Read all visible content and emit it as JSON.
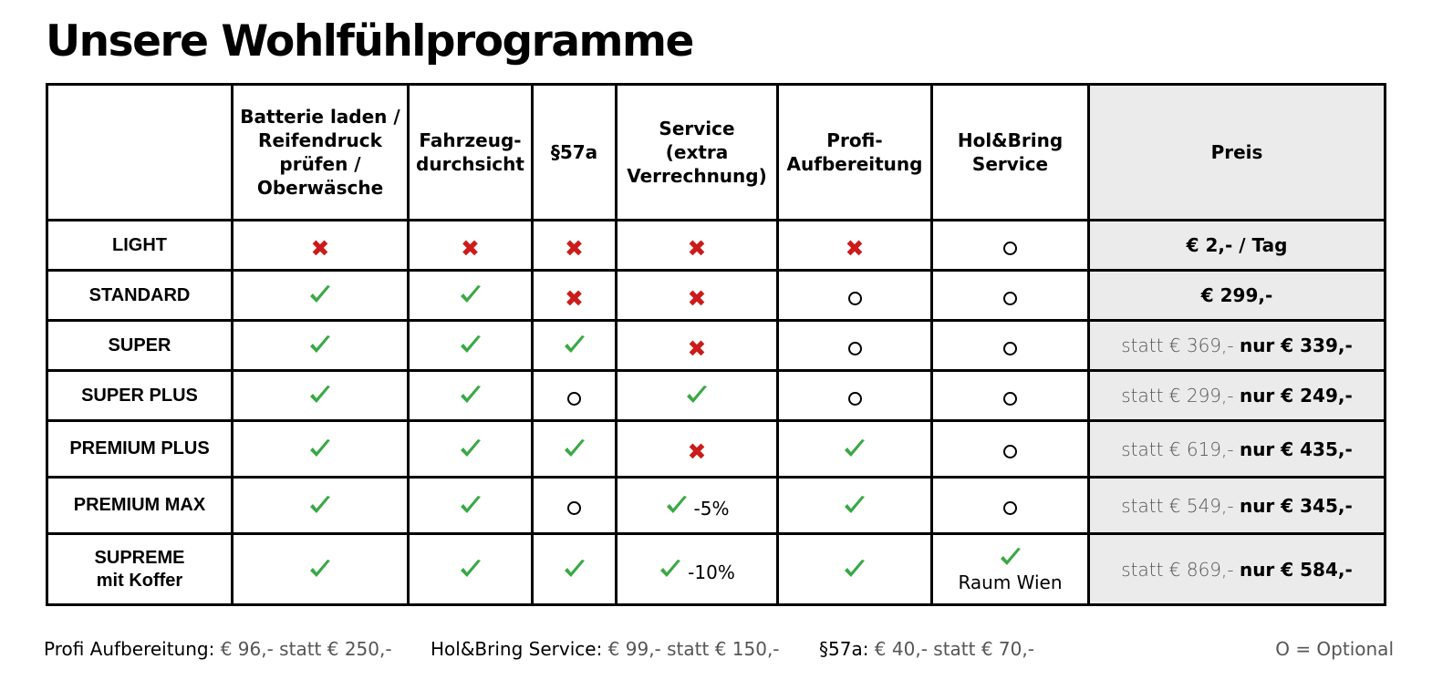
{
  "title": "Unsere Wohlfühlprogramme",
  "colors": {
    "x": "#cc1b1b",
    "check": "#3aa845",
    "price_bg": "#ebebeb"
  },
  "columns": [
    "Batterie laden /\nReifendruck\nprüfen /\nOberwäsche",
    "Fahrzeug-\ndurchsicht",
    "§57a",
    "Service\n(extra\nVerrechnung)",
    "Profi-\nAufbereitung",
    "Hol&Bring\nService",
    "Preis"
  ],
  "rows": [
    {
      "name": "LIGHT",
      "marks": [
        "x",
        "x",
        "x",
        "x",
        "x",
        "o"
      ],
      "extras": [
        "",
        "",
        "",
        "",
        "",
        ""
      ],
      "price_old": "",
      "price_new": "€ 2,- / Tag"
    },
    {
      "name": "STANDARD",
      "marks": [
        "check",
        "check",
        "x",
        "x",
        "o",
        "o"
      ],
      "extras": [
        "",
        "",
        "",
        "",
        "",
        ""
      ],
      "price_old": "",
      "price_new": "€ 299,-"
    },
    {
      "name": "SUPER",
      "marks": [
        "check",
        "check",
        "check",
        "x",
        "o",
        "o"
      ],
      "extras": [
        "",
        "",
        "",
        "",
        "",
        ""
      ],
      "price_old": "statt € 369,- ",
      "price_new": "nur € 339,-"
    },
    {
      "name": "SUPER PLUS",
      "marks": [
        "check",
        "check",
        "o",
        "check",
        "o",
        "o"
      ],
      "extras": [
        "",
        "",
        "",
        "",
        "",
        ""
      ],
      "price_old": "statt € 299,- ",
      "price_new": "nur € 249,-"
    },
    {
      "name": "PREMIUM PLUS",
      "marks": [
        "check",
        "check",
        "check",
        "x",
        "check",
        "o"
      ],
      "extras": [
        "",
        "",
        "",
        "",
        "",
        ""
      ],
      "price_old": "statt € 619,- ",
      "price_new": "nur € 435,-"
    },
    {
      "name": "PREMIUM MAX",
      "marks": [
        "check",
        "check",
        "o",
        "check",
        "check",
        "o"
      ],
      "extras": [
        "",
        "",
        "",
        "-5%",
        "",
        ""
      ],
      "price_old": "statt € 549,- ",
      "price_new": "nur € 345,-"
    },
    {
      "name": "SUPREME\nmit Koffer",
      "marks": [
        "check",
        "check",
        "check",
        "check",
        "check",
        "check"
      ],
      "extras": [
        "",
        "",
        "",
        "-10%",
        "",
        "Raum Wien"
      ],
      "price_old": "statt € 869,- ",
      "price_new": "nur € 584,-"
    }
  ],
  "footer": {
    "profi_label": "Profi Aufbereitung:",
    "profi_value": " € 96,- statt € 250,-",
    "holbring_label": "Hol&Bring Service:",
    "holbring_value": " € 99,- statt € 150,-",
    "p57a_label": "§57a:",
    "p57a_value": " € 40,- statt € 70,-",
    "legend": "O = Optional"
  }
}
